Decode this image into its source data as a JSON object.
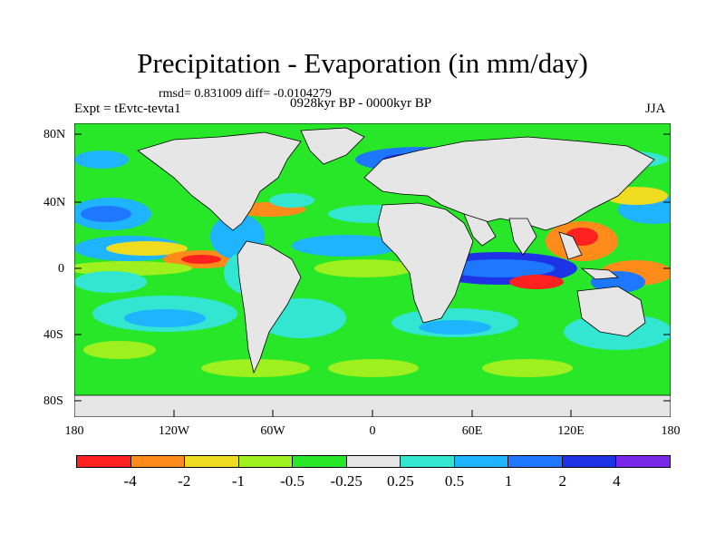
{
  "title": "Precipitation - Evaporation (in mm/day)",
  "stats": "rmsd= 0.831009  diff= -0.0104279",
  "experiment": "Expt = tEvtc-tevta1",
  "period": "0928kyr BP - 0000kyr BP",
  "season": "JJA",
  "y_axis_labels": [
    "80N",
    "40N",
    "0",
    "40S",
    "80S"
  ],
  "x_axis_labels": [
    "180",
    "120W",
    "60W",
    "0",
    "60E",
    "120E",
    "180"
  ],
  "colorbar": {
    "colors": [
      "#ff2020",
      "#ff8c1a",
      "#f0dc1e",
      "#9ef01e",
      "#28e628",
      "#e6e6e6",
      "#32e6d2",
      "#1eb4ff",
      "#1e78ff",
      "#1e32e6",
      "#7828e6"
    ],
    "labels": [
      "-4",
      "-2",
      "-1",
      "-0.5",
      "-0.25",
      "0.25",
      "0.5",
      "1",
      "2",
      "4"
    ]
  },
  "map_colors": {
    "ocean_base": "#28e628",
    "land": "#e6e6e6",
    "coast": "#000000"
  }
}
